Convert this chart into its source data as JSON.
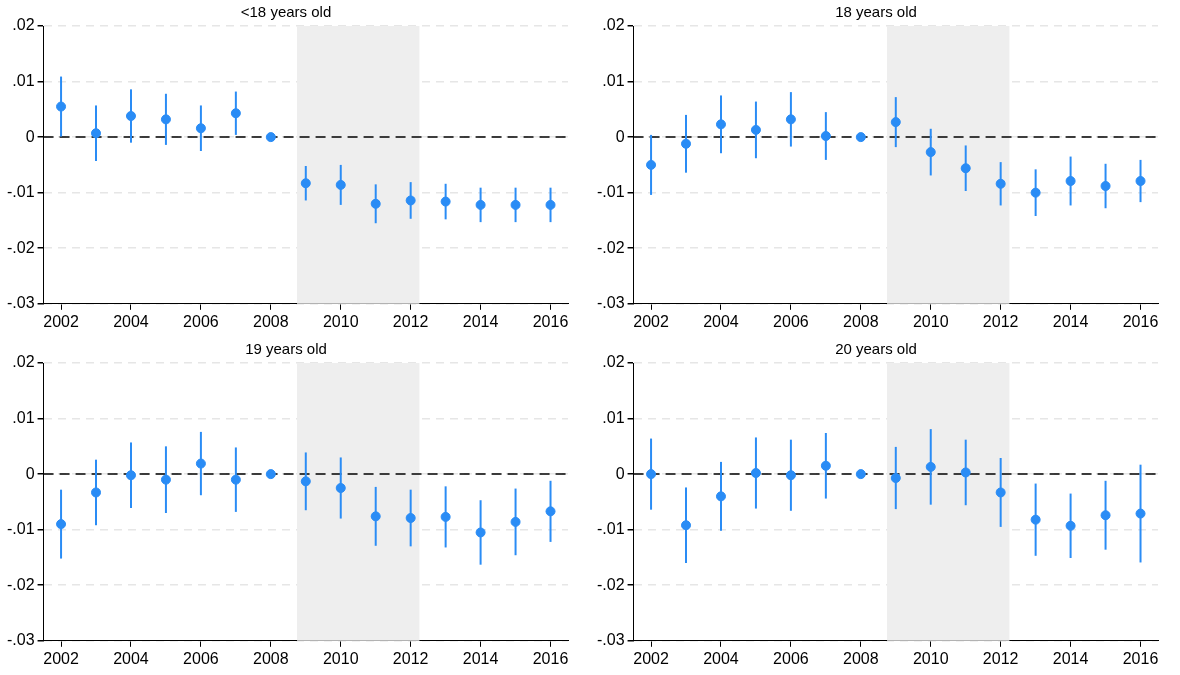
{
  "chart_data": [
    {
      "type": "scatter",
      "title": "<18 years old",
      "x": [
        2002,
        2003,
        2004,
        2005,
        2006,
        2007,
        2008,
        2009,
        2010,
        2011,
        2012,
        2013,
        2014,
        2015,
        2016
      ],
      "values": [
        0.0055,
        0.0007,
        0.0038,
        0.0032,
        0.0016,
        0.0043,
        0,
        -0.0083,
        -0.0086,
        -0.012,
        -0.0114,
        -0.0116,
        -0.0122,
        -0.0122,
        -0.0122
      ],
      "errors": [
        0.0054,
        0.005,
        0.0048,
        0.0046,
        0.0041,
        0.0039,
        null,
        0.0031,
        0.0036,
        0.0035,
        0.0033,
        0.0032,
        0.0031,
        0.0031,
        0.0031
      ],
      "color": "#2a8cf5",
      "marker": "circle",
      "xlim": [
        2001.5,
        2016.5
      ],
      "xticks": [
        2002,
        2004,
        2006,
        2008,
        2010,
        2012,
        2014,
        2016
      ],
      "ylim": [
        -0.03,
        0.02
      ],
      "yticks": [
        {
          "value": -0.03,
          "label": "-.03"
        },
        {
          "value": -0.02,
          "label": "-.02"
        },
        {
          "value": -0.01,
          "label": "-.01"
        },
        {
          "value": 0,
          "label": "0"
        },
        {
          "value": 0.01,
          "label": ".01"
        },
        {
          "value": 0.02,
          "label": ".02"
        }
      ],
      "grid": "y",
      "ref_lines": [
        {
          "axis": "y",
          "value": 0,
          "color": "#000000",
          "line_style": "dashed"
        }
      ],
      "bands": [
        {
          "axis": "x",
          "from": 2008.75,
          "to": 2012.25,
          "color": "#eeeeee"
        }
      ]
    },
    {
      "type": "scatter",
      "title": "18 years old",
      "x": [
        2002,
        2003,
        2004,
        2005,
        2006,
        2007,
        2008,
        2009,
        2010,
        2011,
        2012,
        2013,
        2014,
        2015,
        2016
      ],
      "values": [
        -0.005,
        -0.0012,
        0.0023,
        0.0013,
        0.0032,
        0.0002,
        0,
        0.0027,
        -0.0027,
        -0.0056,
        -0.0084,
        -0.01,
        -0.0079,
        -0.0088,
        -0.0079
      ],
      "errors": [
        0.0054,
        0.0052,
        0.0052,
        0.0051,
        0.0049,
        0.0043,
        null,
        0.0045,
        0.0042,
        0.0041,
        0.0039,
        0.0042,
        0.0044,
        0.004,
        0.0038
      ],
      "color": "#2a8cf5",
      "marker": "circle",
      "xlim": [
        2001.5,
        2016.5
      ],
      "xticks": [
        2002,
        2004,
        2006,
        2008,
        2010,
        2012,
        2014,
        2016
      ],
      "ylim": [
        -0.03,
        0.02
      ],
      "yticks": [
        {
          "value": -0.03,
          "label": "-.03"
        },
        {
          "value": -0.02,
          "label": "-.02"
        },
        {
          "value": -0.01,
          "label": "-.01"
        },
        {
          "value": 0,
          "label": "0"
        },
        {
          "value": 0.01,
          "label": ".01"
        },
        {
          "value": 0.02,
          "label": ".02"
        }
      ],
      "grid": "y",
      "ref_lines": [
        {
          "axis": "y",
          "value": 0,
          "color": "#000000",
          "line_style": "dashed"
        }
      ],
      "bands": [
        {
          "axis": "x",
          "from": 2008.75,
          "to": 2012.25,
          "color": "#eeeeee"
        }
      ]
    },
    {
      "type": "scatter",
      "title": "19 years old",
      "x": [
        2002,
        2003,
        2004,
        2005,
        2006,
        2007,
        2008,
        2009,
        2010,
        2011,
        2012,
        2013,
        2014,
        2015,
        2016
      ],
      "values": [
        -0.009,
        -0.0033,
        -0.0002,
        -0.001,
        0.0019,
        -0.001,
        0,
        -0.0013,
        -0.0025,
        -0.0076,
        -0.0079,
        -0.0077,
        -0.0105,
        -0.0086,
        -0.0067
      ],
      "errors": [
        0.0062,
        0.0059,
        0.0059,
        0.006,
        0.0057,
        0.0058,
        null,
        0.0052,
        0.0055,
        0.0053,
        0.0051,
        0.0055,
        0.0058,
        0.006,
        0.0055
      ],
      "color": "#2a8cf5",
      "marker": "circle",
      "xlim": [
        2001.5,
        2016.5
      ],
      "xticks": [
        2002,
        2004,
        2006,
        2008,
        2010,
        2012,
        2014,
        2016
      ],
      "ylim": [
        -0.03,
        0.02
      ],
      "yticks": [
        {
          "value": -0.03,
          "label": "-.03"
        },
        {
          "value": -0.02,
          "label": "-.02"
        },
        {
          "value": -0.01,
          "label": "-.01"
        },
        {
          "value": 0,
          "label": "0"
        },
        {
          "value": 0.01,
          "label": ".01"
        },
        {
          "value": 0.02,
          "label": ".02"
        }
      ],
      "grid": "y",
      "ref_lines": [
        {
          "axis": "y",
          "value": 0,
          "color": "#000000",
          "line_style": "dashed"
        }
      ],
      "bands": [
        {
          "axis": "x",
          "from": 2008.75,
          "to": 2012.25,
          "color": "#eeeeee"
        }
      ]
    },
    {
      "type": "scatter",
      "title": "20 years old",
      "x": [
        2002,
        2003,
        2004,
        2005,
        2006,
        2007,
        2008,
        2009,
        2010,
        2011,
        2012,
        2013,
        2014,
        2015,
        2016
      ],
      "values": [
        0,
        -0.0092,
        -0.004,
        0.0002,
        -0.0002,
        0.0015,
        0,
        -0.0007,
        0.0013,
        0.0003,
        -0.0033,
        -0.0082,
        -0.0093,
        -0.0074,
        -0.0071
      ],
      "errors": [
        0.0064,
        0.0068,
        0.0062,
        0.0064,
        0.0064,
        0.0059,
        null,
        0.0056,
        0.0068,
        0.0059,
        0.0062,
        0.0065,
        0.0058,
        0.0062,
        0.0088
      ],
      "color": "#2a8cf5",
      "marker": "circle",
      "xlim": [
        2001.5,
        2016.5
      ],
      "xticks": [
        2002,
        2004,
        2006,
        2008,
        2010,
        2012,
        2014,
        2016
      ],
      "ylim": [
        -0.03,
        0.02
      ],
      "yticks": [
        {
          "value": -0.03,
          "label": "-.03"
        },
        {
          "value": -0.02,
          "label": "-.02"
        },
        {
          "value": -0.01,
          "label": "-.01"
        },
        {
          "value": 0,
          "label": "0"
        },
        {
          "value": 0.01,
          "label": ".01"
        },
        {
          "value": 0.02,
          "label": ".02"
        }
      ],
      "grid": "y",
      "ref_lines": [
        {
          "axis": "y",
          "value": 0,
          "color": "#000000",
          "line_style": "dashed"
        }
      ],
      "bands": [
        {
          "axis": "x",
          "from": 2008.75,
          "to": 2012.25,
          "color": "#eeeeee"
        }
      ]
    }
  ]
}
